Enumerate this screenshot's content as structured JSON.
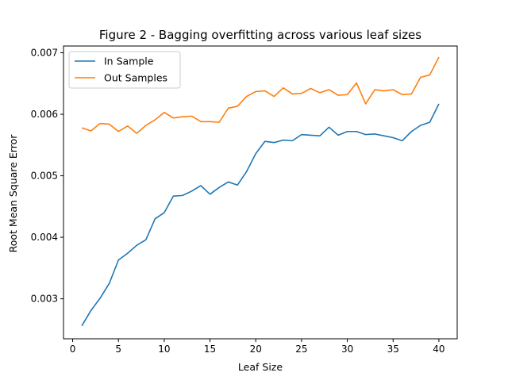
{
  "chart_data": {
    "type": "line",
    "title": "Figure 2 - Bagging overfitting across various leaf sizes",
    "xlabel": "Leaf Size",
    "ylabel": "Root Mean Square Error",
    "xlim": [
      -1,
      42
    ],
    "ylim": [
      0.00235,
      0.00711
    ],
    "xticks": [
      0,
      5,
      10,
      15,
      20,
      25,
      30,
      35,
      40
    ],
    "xtick_labels": [
      "0",
      "5",
      "10",
      "15",
      "20",
      "25",
      "30",
      "35",
      "40"
    ],
    "yticks": [
      0.003,
      0.004,
      0.005,
      0.006,
      0.007
    ],
    "ytick_labels": [
      "0.003",
      "0.004",
      "0.005",
      "0.006",
      "0.007"
    ],
    "grid": false,
    "legend_position": "upper-left",
    "x": [
      1,
      2,
      3,
      4,
      5,
      6,
      7,
      8,
      9,
      10,
      11,
      12,
      13,
      14,
      15,
      16,
      17,
      18,
      19,
      20,
      21,
      22,
      23,
      24,
      25,
      26,
      27,
      28,
      29,
      30,
      31,
      32,
      33,
      34,
      35,
      36,
      37,
      38,
      39,
      40
    ],
    "series": [
      {
        "name": "In Sample",
        "color": "#1f77b4",
        "values": [
          0.00256,
          0.00281,
          0.00301,
          0.00325,
          0.00363,
          0.00374,
          0.00387,
          0.00396,
          0.0043,
          0.0044,
          0.00467,
          0.00468,
          0.00475,
          0.00484,
          0.0047,
          0.00481,
          0.0049,
          0.00485,
          0.00507,
          0.00536,
          0.00556,
          0.00554,
          0.00558,
          0.00557,
          0.00567,
          0.00566,
          0.00565,
          0.00579,
          0.00566,
          0.00572,
          0.00572,
          0.00567,
          0.00568,
          0.00565,
          0.00562,
          0.00557,
          0.00572,
          0.00582,
          0.00587,
          0.00617
        ]
      },
      {
        "name": "Out Samples",
        "color": "#ff7f0e",
        "values": [
          0.00578,
          0.00573,
          0.00585,
          0.00584,
          0.00572,
          0.00581,
          0.00569,
          0.00582,
          0.00591,
          0.00603,
          0.00594,
          0.00596,
          0.00597,
          0.00588,
          0.00588,
          0.00587,
          0.0061,
          0.00613,
          0.00629,
          0.00637,
          0.00638,
          0.00629,
          0.00643,
          0.00633,
          0.00634,
          0.00642,
          0.00635,
          0.0064,
          0.00631,
          0.00632,
          0.00651,
          0.00617,
          0.0064,
          0.00638,
          0.0064,
          0.00632,
          0.00633,
          0.0066,
          0.00664,
          0.00693
        ]
      }
    ]
  }
}
